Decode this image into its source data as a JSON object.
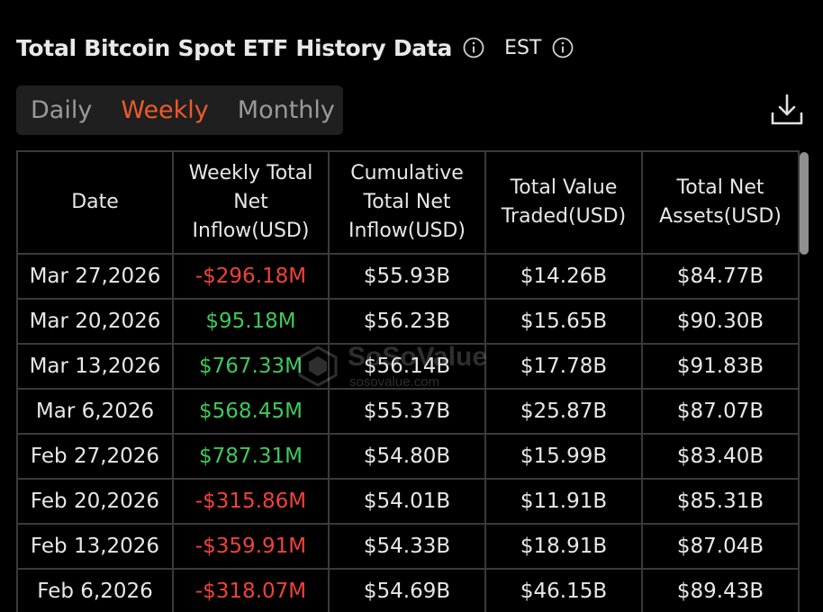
{
  "header": {
    "title": "Total Bitcoin Spot ETF History Data",
    "timezone": "EST"
  },
  "tabs": [
    {
      "label": "Daily",
      "active": false
    },
    {
      "label": "Weekly",
      "active": true
    },
    {
      "label": "Monthly",
      "active": false
    }
  ],
  "table": {
    "columns": [
      "Date",
      "Weekly Total Net Inflow(USD)",
      "Cumulative Total Net Inflow(USD)",
      "Total Value Traded(USD)",
      "Total Net Assets(USD)"
    ],
    "rows": [
      {
        "date": "Mar 27,2026",
        "net_inflow": "-$296.18M",
        "inflow_sign": "negative",
        "cumulative": "$55.93B",
        "traded": "$14.26B",
        "assets": "$84.77B"
      },
      {
        "date": "Mar 20,2026",
        "net_inflow": "$95.18M",
        "inflow_sign": "positive",
        "cumulative": "$56.23B",
        "traded": "$15.65B",
        "assets": "$90.30B"
      },
      {
        "date": "Mar 13,2026",
        "net_inflow": "$767.33M",
        "inflow_sign": "positive",
        "cumulative": "$56.14B",
        "traded": "$17.78B",
        "assets": "$91.83B"
      },
      {
        "date": "Mar 6,2026",
        "net_inflow": "$568.45M",
        "inflow_sign": "positive",
        "cumulative": "$55.37B",
        "traded": "$25.87B",
        "assets": "$87.07B"
      },
      {
        "date": "Feb 27,2026",
        "net_inflow": "$787.31M",
        "inflow_sign": "positive",
        "cumulative": "$54.80B",
        "traded": "$15.99B",
        "assets": "$83.40B"
      },
      {
        "date": "Feb 20,2026",
        "net_inflow": "-$315.86M",
        "inflow_sign": "negative",
        "cumulative": "$54.01B",
        "traded": "$11.91B",
        "assets": "$85.31B"
      },
      {
        "date": "Feb 13,2026",
        "net_inflow": "-$359.91M",
        "inflow_sign": "negative",
        "cumulative": "$54.33B",
        "traded": "$18.91B",
        "assets": "$87.04B"
      },
      {
        "date": "Feb 6,2026",
        "net_inflow": "-$318.07M",
        "inflow_sign": "negative",
        "cumulative": "$54.69B",
        "traded": "$46.15B",
        "assets": "$89.43B"
      }
    ]
  },
  "watermark": {
    "name": "SoSoValue",
    "url": "sosovalue.com"
  },
  "colors": {
    "accent": "#ef5a2a",
    "positive": "#3ec95a",
    "negative": "#f0423a",
    "background": "#000000",
    "grid": "#3a3a3a"
  },
  "icons": {
    "title_info": "info-icon",
    "timezone_info": "info-icon",
    "download": "download-icon"
  }
}
